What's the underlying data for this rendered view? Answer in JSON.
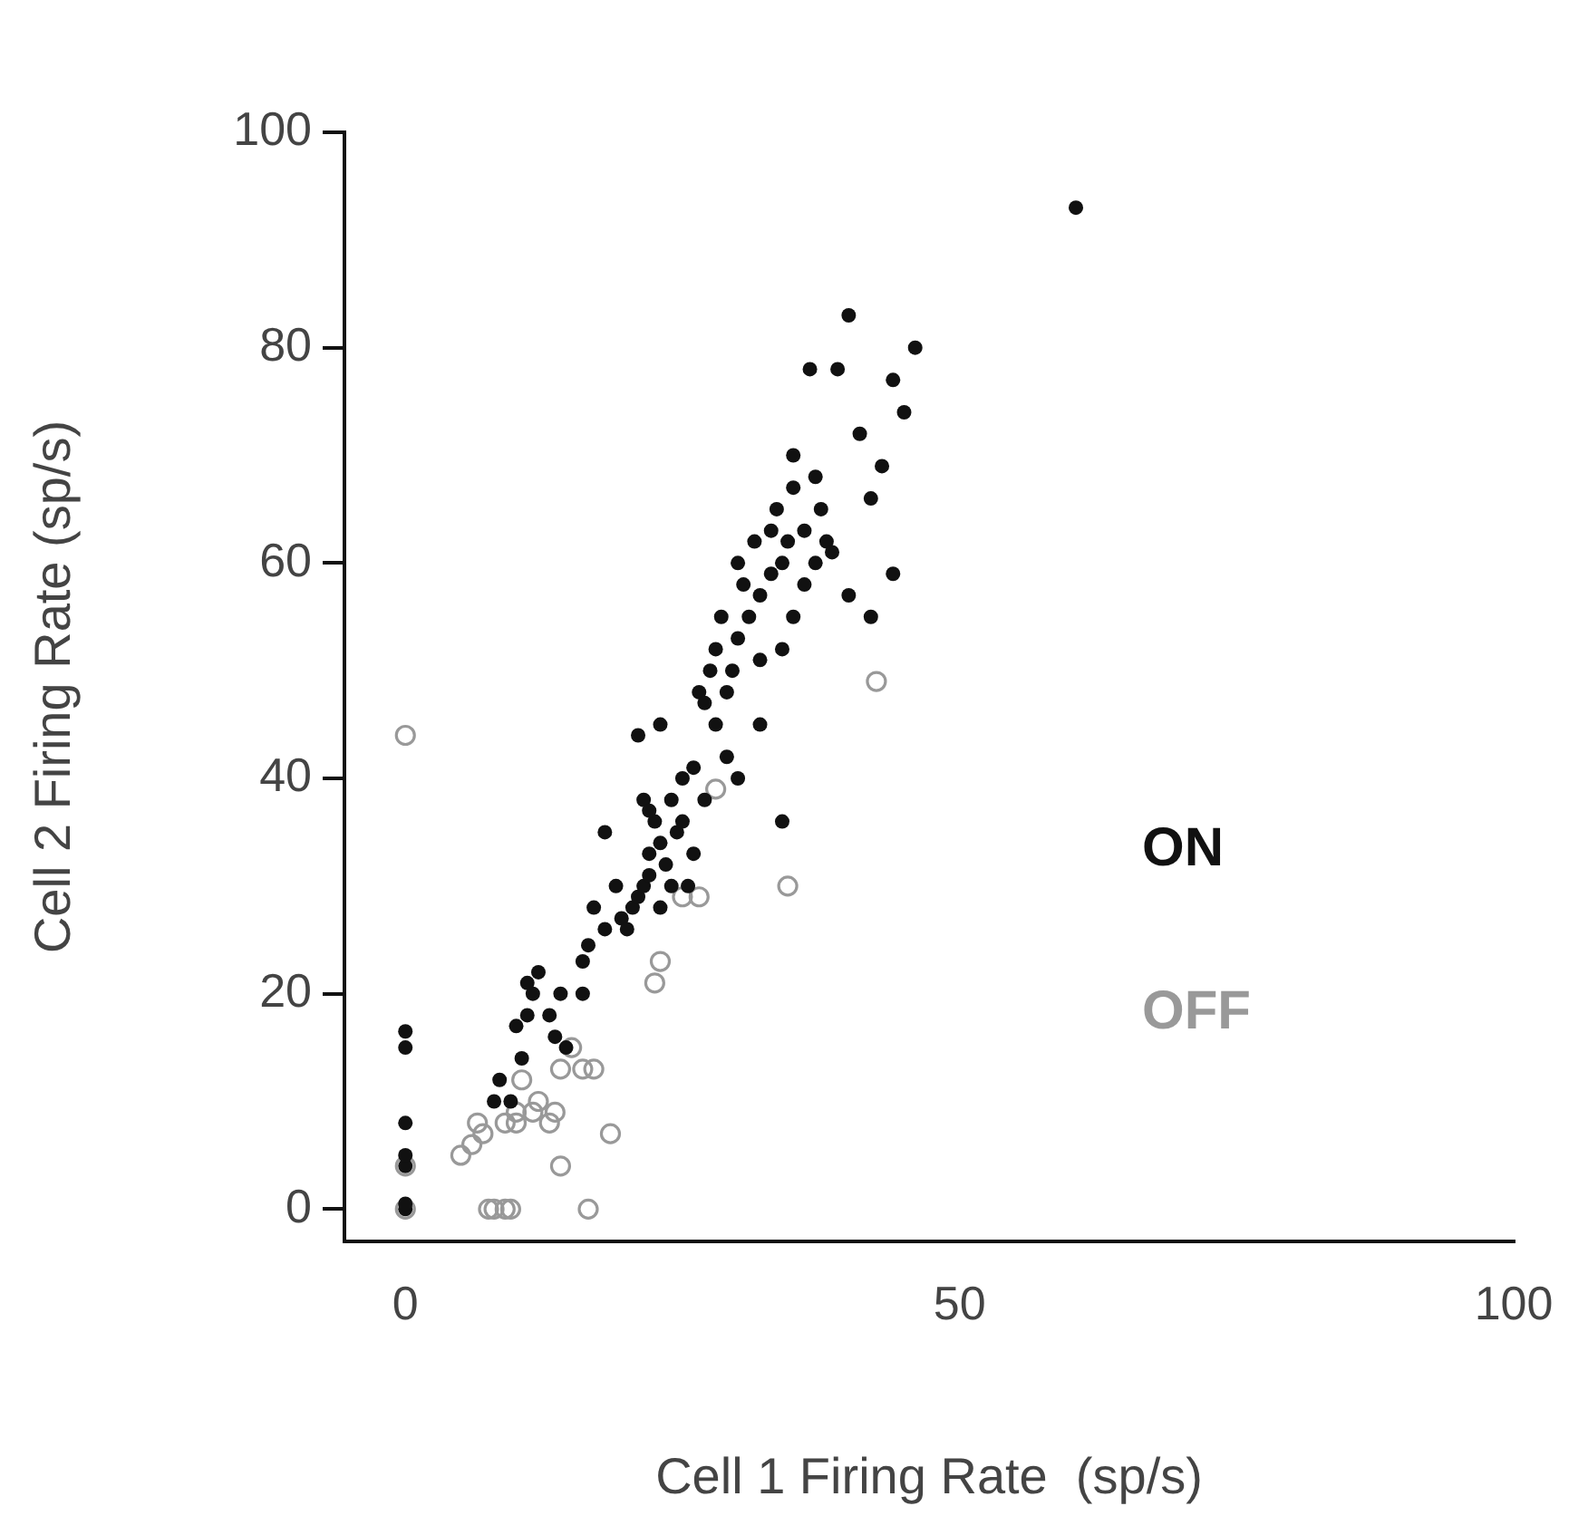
{
  "chart_data": {
    "type": "scatter",
    "xlabel": "Cell 1 Firing Rate  (sp/s)",
    "ylabel": "Cell 2 Firing Rate (sp/s)",
    "xlim": [
      -5.5,
      100
    ],
    "ylim": [
      -3,
      100
    ],
    "xticks": [
      0,
      50,
      100
    ],
    "yticks": [
      0,
      20,
      40,
      60,
      80,
      100
    ],
    "grid": false,
    "legend": "right",
    "marker": "circle",
    "series": [
      {
        "name": "ON",
        "color": "#111111",
        "x": [
          0,
          0,
          0,
          0,
          0,
          0,
          0,
          8,
          8.5,
          9.5,
          10.5,
          10,
          11,
          11.5,
          12,
          11,
          13,
          13.5,
          14,
          14.5,
          16,
          16,
          16.5,
          17,
          18,
          18,
          19,
          19.5,
          20,
          20.5,
          21,
          21.5,
          21.5,
          22,
          22,
          22.5,
          23,
          23,
          23.5,
          24,
          24,
          24.5,
          25,
          25,
          25.5,
          26,
          21,
          23,
          26,
          26.5,
          27,
          27.5,
          28,
          28,
          28.5,
          29,
          29,
          29.5,
          30,
          30.5,
          30,
          31,
          31.5,
          32,
          32,
          33,
          33,
          33.5,
          34,
          34.5,
          35,
          35,
          36,
          36,
          37,
          37.5,
          38,
          34,
          38.5,
          36.5,
          39,
          40,
          40,
          41,
          42,
          43,
          44,
          44,
          45,
          46,
          42,
          60.5,
          34,
          32,
          30,
          27,
          22,
          35,
          37
        ],
        "values": [
          0,
          0.5,
          4,
          5,
          8,
          15,
          16.5,
          10,
          12,
          10,
          14,
          17,
          18,
          20,
          22,
          21,
          18,
          16,
          20,
          15,
          20,
          23,
          24.5,
          28,
          26,
          35,
          30,
          27,
          26,
          28,
          29,
          30,
          38,
          31,
          33,
          36,
          28,
          34,
          32,
          30,
          38,
          35,
          36,
          40,
          30,
          33,
          44,
          45,
          41,
          48,
          47,
          50,
          45,
          52,
          55,
          42,
          48,
          50,
          53,
          58,
          60,
          55,
          62,
          51,
          57,
          59,
          63,
          65,
          60,
          62,
          67,
          70,
          63,
          58,
          60,
          65,
          62,
          36,
          61,
          78,
          78,
          83,
          57,
          72,
          66,
          69,
          59,
          77,
          74,
          80,
          55,
          93,
          52,
          45,
          40,
          38,
          37,
          55,
          68
        ]
      },
      {
        "name": "OFF",
        "color": "#999999",
        "x": [
          0,
          0,
          0,
          5,
          6,
          6.5,
          7,
          7.5,
          8,
          9,
          9.5,
          9,
          10,
          10.5,
          11.5,
          12,
          13,
          13.5,
          14,
          14,
          15,
          16,
          17,
          18.5,
          16.5,
          22.5,
          23,
          25,
          26.5,
          28,
          34.5,
          42.5,
          10
        ],
        "values": [
          44,
          0,
          4,
          5,
          6,
          8,
          7,
          0,
          0,
          0,
          0,
          8,
          9,
          12,
          9,
          10,
          8,
          9,
          4,
          13,
          15,
          13,
          13,
          7,
          0,
          21,
          23,
          29,
          29,
          39,
          30,
          49,
          8
        ]
      }
    ]
  }
}
